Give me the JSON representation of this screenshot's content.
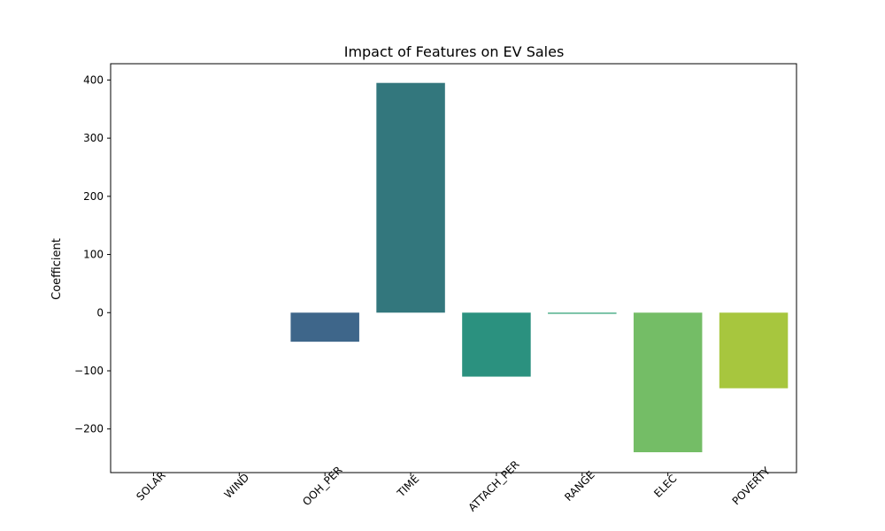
{
  "chart_data": {
    "type": "bar",
    "title": "Impact of Features on EV Sales",
    "xlabel": "",
    "ylabel": "Coefficient",
    "categories": [
      "SOLAR",
      "WIND",
      "OOH_PER",
      "TIME",
      "ATTACH_PER",
      "RANGE",
      "ELEC",
      "POVERTY"
    ],
    "values": [
      0,
      0,
      -50,
      395,
      -110,
      -2,
      -240,
      -130
    ],
    "colors": [
      "#482374",
      "#443a83",
      "#3e668a",
      "#33777d",
      "#2b917f",
      "#3aa57c",
      "#74bd66",
      "#a7c63e"
    ],
    "ylim": [
      -275,
      428
    ],
    "yticks": [
      -200,
      -100,
      0,
      100,
      200,
      300,
      400
    ],
    "ytick_labels": [
      "−200",
      "−100",
      "0",
      "100",
      "200",
      "300",
      "400"
    ],
    "grid": false,
    "legend": "none"
  }
}
